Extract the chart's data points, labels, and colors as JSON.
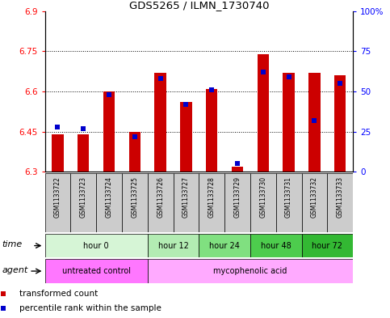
{
  "title": "GDS5265 / ILMN_1730740",
  "samples": [
    "GSM1133722",
    "GSM1133723",
    "GSM1133724",
    "GSM1133725",
    "GSM1133726",
    "GSM1133727",
    "GSM1133728",
    "GSM1133729",
    "GSM1133730",
    "GSM1133731",
    "GSM1133732",
    "GSM1133733"
  ],
  "red_values": [
    6.44,
    6.44,
    6.6,
    6.45,
    6.67,
    6.56,
    6.61,
    6.32,
    6.74,
    6.67,
    6.67,
    6.66
  ],
  "blue_values_pct": [
    28,
    27,
    48,
    22,
    58,
    42,
    51,
    5,
    62,
    59,
    32,
    55
  ],
  "ylim": [
    6.3,
    6.9
  ],
  "yticks_left": [
    6.3,
    6.45,
    6.6,
    6.75,
    6.9
  ],
  "yticks_right_pct": [
    0,
    25,
    50,
    75,
    100
  ],
  "bar_bottom": 6.3,
  "time_groups": [
    {
      "label": "hour 0",
      "start": 0,
      "end": 4,
      "color": "#d6f5d6"
    },
    {
      "label": "hour 12",
      "start": 4,
      "end": 6,
      "color": "#b3ecb3"
    },
    {
      "label": "hour 24",
      "start": 6,
      "end": 8,
      "color": "#80e080"
    },
    {
      "label": "hour 48",
      "start": 8,
      "end": 10,
      "color": "#4dcc4d"
    },
    {
      "label": "hour 72",
      "start": 10,
      "end": 12,
      "color": "#33b833"
    }
  ],
  "agent_groups": [
    {
      "label": "untreated control",
      "start": 0,
      "end": 4,
      "color": "#ff77ff"
    },
    {
      "label": "mycophenolic acid",
      "start": 4,
      "end": 12,
      "color": "#ffaaff"
    }
  ],
  "red_color": "#cc0000",
  "blue_color": "#0000cc",
  "bar_width": 0.45,
  "blue_marker_size": 5,
  "background_color": "white",
  "sample_box_color": "#cccccc",
  "legend_red": "transformed count",
  "legend_blue": "percentile rank within the sample"
}
